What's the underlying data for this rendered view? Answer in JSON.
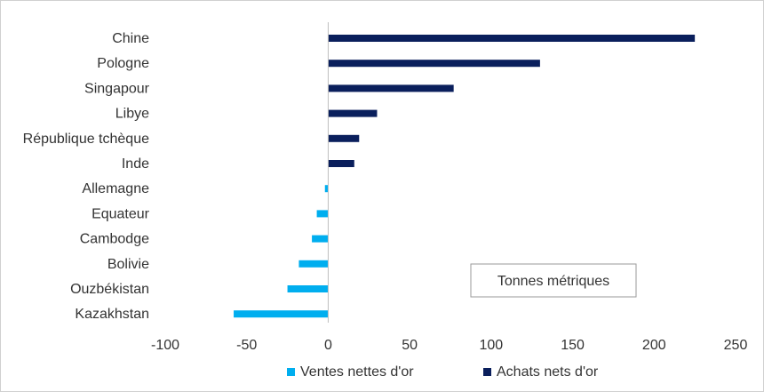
{
  "chart_data": {
    "type": "bar",
    "orientation": "horizontal",
    "categories": [
      "Chine",
      "Pologne",
      "Singapour",
      "Libye",
      "République tchèque",
      "Inde",
      "Allemagne",
      "Equateur",
      "Cambodge",
      "Bolivie",
      "Ouzbékistan",
      "Kazakhstan"
    ],
    "values": [
      225,
      130,
      77,
      30,
      19,
      16,
      -2,
      -7,
      -10,
      -18,
      -25,
      -58
    ],
    "series": [
      {
        "name": "Ventes nettes d'or",
        "color": "#00aeef",
        "applies_to": "negative values"
      },
      {
        "name": "Achats nets d'or",
        "color": "#0a1f5c",
        "applies_to": "positive values"
      }
    ],
    "xlim": [
      -100,
      250
    ],
    "xticks": [
      "-100",
      "-50",
      "0",
      "50",
      "100",
      "150",
      "200",
      "250"
    ],
    "annotation": "Tonnes métriques",
    "grid": false,
    "legend_position": "bottom"
  }
}
